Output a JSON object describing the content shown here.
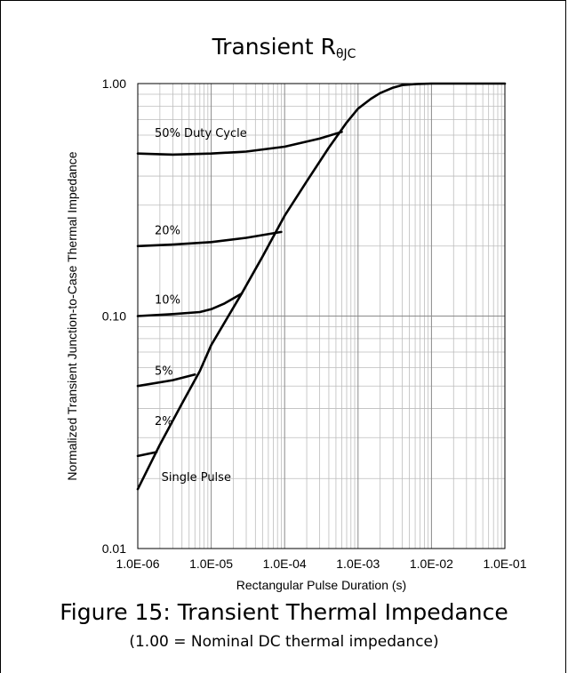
{
  "chart_data": {
    "type": "line",
    "title": "Transient R",
    "title_subscript": "θJC",
    "xlabel": "Rectangular Pulse Duration (s)",
    "ylabel": "Normalized Transient Junction-to-Case Thermal  Impedance",
    "x_scale": "log",
    "y_scale": "log",
    "xlim": [
      1e-06,
      0.1
    ],
    "ylim": [
      0.01,
      1.0
    ],
    "grid": true,
    "x_ticks": [
      1e-06,
      1e-05,
      0.0001,
      0.001,
      0.01,
      0.1
    ],
    "x_tick_labels": [
      "1.0E-06",
      "1.0E-05",
      "1.0E-04",
      "1.0E-03",
      "1.0E-02",
      "1.0E-01"
    ],
    "y_ticks": [
      0.01,
      0.1,
      1.0
    ],
    "y_tick_labels": [
      "0.01",
      "0.10",
      "1.00"
    ],
    "series": [
      {
        "name": "50% Duty Cycle",
        "label": "50% Duty Cycle",
        "label_at": [
          1.7e-06,
          0.59
        ],
        "x": [
          1e-06,
          3e-06,
          1e-05,
          3e-05,
          0.0001,
          0.0003,
          0.0006
        ],
        "y": [
          0.5,
          0.495,
          0.5,
          0.51,
          0.535,
          0.58,
          0.62
        ]
      },
      {
        "name": "20%",
        "label": "20%",
        "label_at": [
          1.7e-06,
          0.225
        ],
        "x": [
          1e-06,
          3e-06,
          1e-05,
          3e-05,
          9e-05
        ],
        "y": [
          0.2,
          0.203,
          0.208,
          0.217,
          0.23
        ]
      },
      {
        "name": "10%",
        "label": "10%",
        "label_at": [
          1.7e-06,
          0.113
        ],
        "x": [
          1e-06,
          3e-06,
          7e-06,
          1e-05,
          1.5e-05,
          2.6e-05
        ],
        "y": [
          0.1,
          0.102,
          0.104,
          0.107,
          0.113,
          0.125
        ]
      },
      {
        "name": "5%",
        "label": "5%",
        "label_at": [
          1.7e-06,
          0.056
        ],
        "x": [
          1e-06,
          3e-06,
          6e-06
        ],
        "y": [
          0.05,
          0.053,
          0.056
        ]
      },
      {
        "name": "2%",
        "label": "2%",
        "label_at": [
          1.7e-06,
          0.034
        ],
        "x": [
          1e-06,
          1.8e-06
        ],
        "y": [
          0.025,
          0.026
        ]
      },
      {
        "name": "Single Pulse",
        "label": "Single Pulse",
        "label_at": [
          2.1e-06,
          0.0195
        ],
        "x": [
          1e-06,
          2e-06,
          4e-06,
          7e-06,
          1e-05,
          1.5e-05,
          2.6e-05,
          5e-05,
          0.0001,
          0.0002,
          0.0004,
          0.0007,
          0.001,
          0.0015,
          0.002,
          0.003,
          0.004,
          0.006,
          0.01,
          0.03,
          0.1
        ],
        "y": [
          0.018,
          0.028,
          0.042,
          0.058,
          0.075,
          0.093,
          0.125,
          0.18,
          0.27,
          0.38,
          0.53,
          0.68,
          0.78,
          0.86,
          0.91,
          0.96,
          0.985,
          0.995,
          1.0,
          1.0,
          1.0
        ]
      }
    ]
  },
  "caption": {
    "main": "Figure 15: Transient Thermal Impedance",
    "sub": "(1.00 = Nominal DC thermal impedance)"
  }
}
